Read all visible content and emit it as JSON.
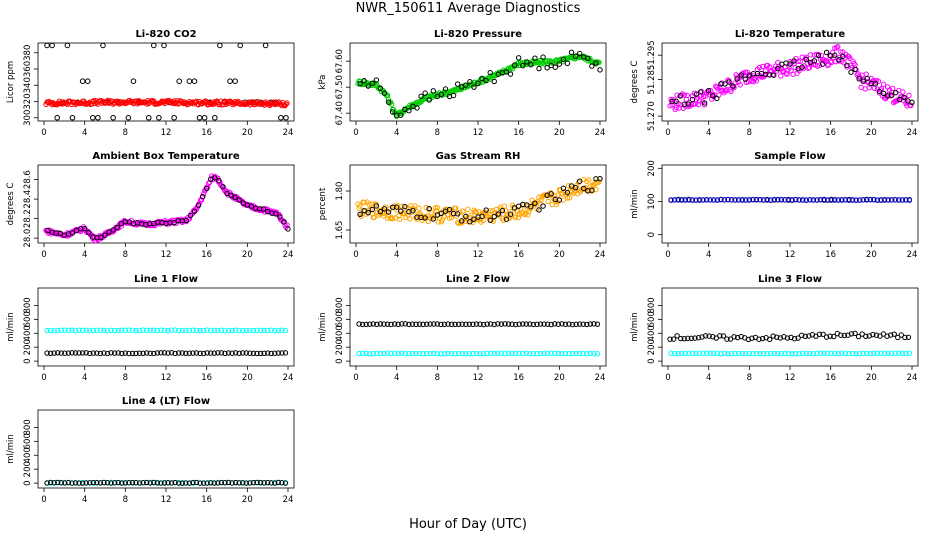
{
  "page": {
    "title": "NWR_150611  Average Diagnostics",
    "xlabel": "Hour of Day (UTC)"
  },
  "colors": {
    "black": "#000000",
    "red": "#ff0000",
    "green": "#00cc00",
    "magenta": "#ff00ff",
    "orange": "#ffa500",
    "cyan": "#00ffff",
    "blue": "#0000cc"
  },
  "chart_data": [
    {
      "type": "scatter",
      "title": "Li-820 CO2",
      "ylabel": "Licor ppm",
      "xlim": [
        0,
        24
      ],
      "ylim": [
        296,
        392
      ],
      "xticks": [
        0,
        4,
        8,
        12,
        16,
        20,
        24
      ],
      "yticks": [
        300,
        320,
        340,
        360,
        380
      ],
      "series": [
        {
          "color": "black",
          "kind": "cal_levels",
          "levels": [
            300,
            319,
            345,
            389
          ]
        },
        {
          "color": "red",
          "kind": "trend",
          "keys": [
            [
              0,
              318
            ],
            [
              6,
              319
            ],
            [
              12,
              319
            ],
            [
              18,
              318
            ],
            [
              24,
              317
            ]
          ]
        }
      ]
    },
    {
      "type": "scatter",
      "title": "Li-820 Pressure",
      "ylabel": "kPa",
      "xlim": [
        0,
        24
      ],
      "ylim": [
        67.37,
        67.67
      ],
      "xticks": [
        0,
        4,
        8,
        12,
        16,
        20,
        24
      ],
      "yticks": [
        67.4,
        67.5,
        67.6
      ],
      "ytick_labels": [
        "67.40",
        "67.50",
        "67.60"
      ],
      "series": [
        {
          "color": "green",
          "kind": "trend",
          "keys": [
            [
              0,
              67.52
            ],
            [
              2,
              67.51
            ],
            [
              3,
              67.47
            ],
            [
              4,
              67.39
            ],
            [
              5,
              67.42
            ],
            [
              7,
              67.46
            ],
            [
              10,
              67.49
            ],
            [
              14,
              67.55
            ],
            [
              16,
              67.59
            ],
            [
              20,
              67.6
            ],
            [
              22,
              67.62
            ],
            [
              24,
              67.59
            ]
          ]
        },
        {
          "color": "black",
          "kind": "subset"
        }
      ]
    },
    {
      "type": "scatter",
      "title": "Li-820 Temperature",
      "ylabel": "degrees C",
      "xlim": [
        0,
        24
      ],
      "ylim": [
        51.268,
        51.3
      ],
      "xticks": [
        0,
        4,
        8,
        12,
        16,
        20,
        24
      ],
      "yticks": [
        51.27,
        51.285,
        51.295
      ],
      "ytick_labels": [
        "51.270",
        "51.285",
        "51.295"
      ],
      "series": [
        {
          "color": "magenta",
          "kind": "trend",
          "keys": [
            [
              0,
              51.275
            ],
            [
              4,
              51.278
            ],
            [
              8,
              51.287
            ],
            [
              12,
              51.29
            ],
            [
              16,
              51.294
            ],
            [
              17,
              51.296
            ],
            [
              19,
              51.285
            ],
            [
              22,
              51.279
            ],
            [
              24,
              51.275
            ]
          ]
        },
        {
          "color": "black",
          "kind": "subset"
        }
      ]
    },
    {
      "type": "scatter",
      "title": "Ambient Box Temperature",
      "ylabel": "degrees C",
      "xlim": [
        0,
        24
      ],
      "ylim": [
        27.95,
        28.75
      ],
      "xticks": [
        0,
        4,
        8,
        12,
        16,
        20,
        24
      ],
      "yticks": [
        28.0,
        28.2,
        28.4,
        28.6
      ],
      "ytick_labels": [
        "28.0",
        "28.2",
        "28.4",
        "28.6"
      ],
      "series": [
        {
          "color": "magenta",
          "kind": "trend",
          "keys": [
            [
              0,
              28.08
            ],
            [
              2,
              28.03
            ],
            [
              4,
              28.1
            ],
            [
              5,
              27.99
            ],
            [
              6,
              28.03
            ],
            [
              8,
              28.17
            ],
            [
              10,
              28.14
            ],
            [
              12,
              28.16
            ],
            [
              14,
              28.18
            ],
            [
              15,
              28.3
            ],
            [
              16.5,
              28.62
            ],
            [
              17,
              28.62
            ],
            [
              18,
              28.47
            ],
            [
              20,
              28.33
            ],
            [
              22,
              28.28
            ],
            [
              23,
              28.25
            ],
            [
              24,
              28.1
            ]
          ]
        },
        {
          "color": "black",
          "kind": "subset"
        }
      ]
    },
    {
      "type": "scatter",
      "title": "Gas Stream RH",
      "ylabel": "percent",
      "xlim": [
        0,
        24
      ],
      "ylim": [
        1.6,
        1.9
      ],
      "xticks": [
        0,
        4,
        8,
        12,
        16,
        20,
        24
      ],
      "yticks": [
        1.65,
        1.8
      ],
      "ytick_labels": [
        "1.65",
        "1.80"
      ],
      "series": [
        {
          "color": "orange",
          "kind": "trend",
          "keys": [
            [
              0,
              1.73
            ],
            [
              4,
              1.72
            ],
            [
              8,
              1.71
            ],
            [
              12,
              1.7
            ],
            [
              16,
              1.72
            ],
            [
              20,
              1.78
            ],
            [
              22,
              1.82
            ],
            [
              24,
              1.83
            ]
          ]
        },
        {
          "color": "black",
          "kind": "subset"
        }
      ]
    },
    {
      "type": "scatter",
      "title": "Sample Flow",
      "ylabel": "ml/min",
      "xlim": [
        0,
        24
      ],
      "ylim": [
        -25,
        210
      ],
      "xticks": [
        0,
        4,
        8,
        12,
        16,
        20,
        24
      ],
      "yticks": [
        0,
        100,
        200
      ],
      "series": [
        {
          "color": "black",
          "kind": "flat",
          "value": 105
        },
        {
          "color": "blue",
          "kind": "flat",
          "value": 105
        }
      ]
    },
    {
      "type": "scatter",
      "title": "Line 1 Flow",
      "ylabel": "ml/min",
      "xlim": [
        0,
        24
      ],
      "ylim": [
        -70,
        1050
      ],
      "xticks": [
        0,
        4,
        8,
        12,
        16,
        20,
        24
      ],
      "yticks": [
        0,
        200,
        400,
        600,
        800
      ],
      "series": [
        {
          "color": "cyan",
          "kind": "flat",
          "value": 440
        },
        {
          "color": "black",
          "kind": "flat",
          "value": 115
        }
      ]
    },
    {
      "type": "scatter",
      "title": "Line 2 Flow",
      "ylabel": "ml/min",
      "xlim": [
        0,
        24
      ],
      "ylim": [
        -70,
        1050
      ],
      "xticks": [
        0,
        4,
        8,
        12,
        16,
        20,
        24
      ],
      "yticks": [
        0,
        200,
        400,
        600,
        800
      ],
      "series": [
        {
          "color": "cyan",
          "kind": "flat",
          "value": 110
        },
        {
          "color": "black",
          "kind": "flat",
          "value": 530
        }
      ]
    },
    {
      "type": "scatter",
      "title": "Line 3 Flow",
      "ylabel": "ml/min",
      "xlim": [
        0,
        24
      ],
      "ylim": [
        -70,
        1050
      ],
      "xticks": [
        0,
        4,
        8,
        12,
        16,
        20,
        24
      ],
      "yticks": [
        0,
        200,
        400,
        600,
        800
      ],
      "series": [
        {
          "color": "cyan",
          "kind": "flat",
          "value": 110
        },
        {
          "color": "black",
          "kind": "trend",
          "keys": [
            [
              0,
              340
            ],
            [
              12,
              335
            ],
            [
              15,
              370
            ],
            [
              20,
              375
            ],
            [
              24,
              350
            ]
          ]
        }
      ]
    },
    {
      "type": "scatter",
      "title": "Line 4 (LT) Flow",
      "ylabel": "ml/min",
      "xlim": [
        0,
        24
      ],
      "ylim": [
        -70,
        1050
      ],
      "xticks": [
        0,
        4,
        8,
        12,
        16,
        20,
        24
      ],
      "yticks": [
        0,
        200,
        400,
        600,
        800
      ],
      "series": [
        {
          "color": "cyan",
          "kind": "flat",
          "value": 5
        },
        {
          "color": "black",
          "kind": "flat",
          "value": 5
        }
      ]
    }
  ]
}
